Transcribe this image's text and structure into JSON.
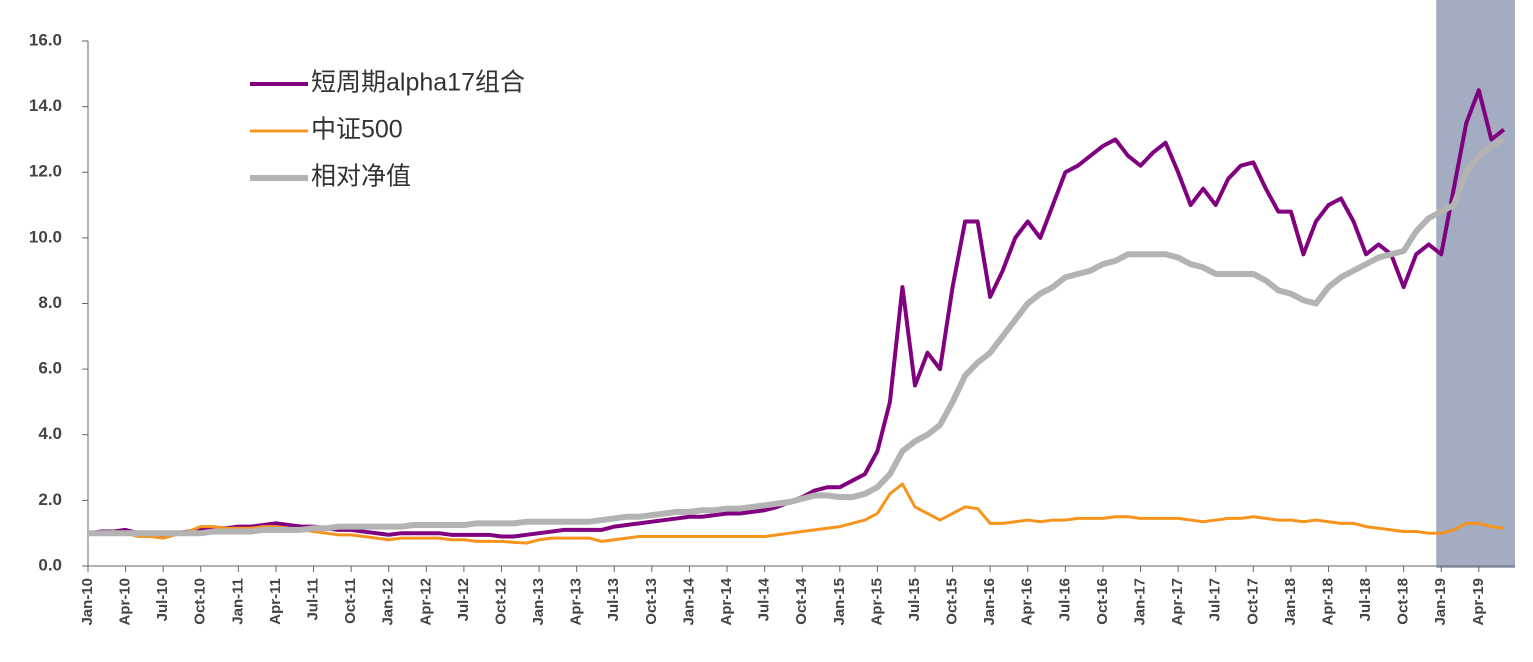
{
  "chart_data": {
    "type": "line",
    "categories": [
      "Jan-10",
      null,
      null,
      "Apr-10",
      null,
      null,
      "Jul-10",
      null,
      null,
      "Oct-10",
      null,
      null,
      "Jan-11",
      null,
      null,
      "Apr-11",
      null,
      null,
      "Jul-11",
      null,
      null,
      "Oct-11",
      null,
      null,
      "Jan-12",
      null,
      null,
      "Apr-12",
      null,
      null,
      "Jul-12",
      null,
      null,
      "Oct-12",
      null,
      null,
      "Jan-13",
      null,
      null,
      "Apr-13",
      null,
      null,
      "Jul-13",
      null,
      null,
      "Oct-13",
      null,
      null,
      "Jan-14",
      null,
      null,
      "Apr-14",
      null,
      null,
      "Jul-14",
      null,
      null,
      "Oct-14",
      null,
      null,
      "Jan-15",
      null,
      null,
      "Apr-15",
      null,
      null,
      "Jul-15",
      null,
      null,
      "Oct-15",
      null,
      null,
      "Jan-16",
      null,
      null,
      "Apr-16",
      null,
      null,
      "Jul-16",
      null,
      null,
      "Oct-16",
      null,
      null,
      "Jan-17",
      null,
      null,
      "Apr-17",
      null,
      null,
      "Jul-17",
      null,
      null,
      "Oct-17",
      null,
      null,
      "Jan-18",
      null,
      null,
      "Apr-18",
      null,
      null,
      "Jul-18",
      null,
      null,
      "Oct-18",
      null,
      null,
      "Jan-19",
      null,
      null,
      "Apr-19",
      null,
      null
    ],
    "series": [
      {
        "name": "短周期alpha17组合",
        "color": "#800080",
        "width": 4,
        "values": [
          1.0,
          1.05,
          1.05,
          1.1,
          1.0,
          0.95,
          0.95,
          1.0,
          1.05,
          1.1,
          1.15,
          1.15,
          1.2,
          1.2,
          1.25,
          1.3,
          1.25,
          1.2,
          1.2,
          1.15,
          1.1,
          1.1,
          1.05,
          1.0,
          0.95,
          1.0,
          1.0,
          1.0,
          1.0,
          0.95,
          0.95,
          0.95,
          0.95,
          0.9,
          0.9,
          0.95,
          1.0,
          1.05,
          1.1,
          1.1,
          1.1,
          1.1,
          1.2,
          1.25,
          1.3,
          1.35,
          1.4,
          1.45,
          1.5,
          1.5,
          1.55,
          1.6,
          1.6,
          1.65,
          1.7,
          1.8,
          1.95,
          2.1,
          2.3,
          2.4,
          2.4,
          2.6,
          2.8,
          3.5,
          5.0,
          8.5,
          5.5,
          6.5,
          6.0,
          8.5,
          10.5,
          10.5,
          8.2,
          9.0,
          10.0,
          10.5,
          10.0,
          11.0,
          12.0,
          12.2,
          12.5,
          12.8,
          13.0,
          12.5,
          12.2,
          12.6,
          12.9,
          12.0,
          11.0,
          11.5,
          11.0,
          11.8,
          12.2,
          12.3,
          11.5,
          10.8,
          10.8,
          9.5,
          10.5,
          11.0,
          11.2,
          10.5,
          9.5,
          9.8,
          9.5,
          8.5,
          9.5,
          9.8,
          9.5,
          11.5,
          13.5,
          14.5,
          13.0,
          13.3
        ]
      },
      {
        "name": "中证500",
        "color": "#f7941d",
        "width": 3,
        "values": [
          1.0,
          1.0,
          1.05,
          1.0,
          0.9,
          0.9,
          0.85,
          0.95,
          1.05,
          1.2,
          1.2,
          1.15,
          1.15,
          1.15,
          1.2,
          1.2,
          1.15,
          1.1,
          1.05,
          1.0,
          0.95,
          0.95,
          0.9,
          0.85,
          0.8,
          0.85,
          0.85,
          0.85,
          0.85,
          0.8,
          0.8,
          0.75,
          0.75,
          0.75,
          0.72,
          0.7,
          0.8,
          0.85,
          0.85,
          0.85,
          0.85,
          0.75,
          0.8,
          0.85,
          0.9,
          0.9,
          0.9,
          0.9,
          0.9,
          0.9,
          0.9,
          0.9,
          0.9,
          0.9,
          0.9,
          0.95,
          1.0,
          1.05,
          1.1,
          1.15,
          1.2,
          1.3,
          1.4,
          1.6,
          2.2,
          2.5,
          1.8,
          1.6,
          1.4,
          1.6,
          1.8,
          1.75,
          1.3,
          1.3,
          1.35,
          1.4,
          1.35,
          1.4,
          1.4,
          1.45,
          1.45,
          1.45,
          1.5,
          1.5,
          1.45,
          1.45,
          1.45,
          1.45,
          1.4,
          1.35,
          1.4,
          1.45,
          1.45,
          1.5,
          1.45,
          1.4,
          1.4,
          1.35,
          1.4,
          1.35,
          1.3,
          1.3,
          1.2,
          1.15,
          1.1,
          1.05,
          1.05,
          1.0,
          1.0,
          1.1,
          1.3,
          1.3,
          1.2,
          1.15
        ]
      },
      {
        "name": "相对净值",
        "color": "#b3b3b3",
        "width": 6,
        "values": [
          1.0,
          1.0,
          1.0,
          1.0,
          1.0,
          1.0,
          1.0,
          1.0,
          1.0,
          1.0,
          1.05,
          1.05,
          1.05,
          1.05,
          1.1,
          1.1,
          1.1,
          1.1,
          1.15,
          1.15,
          1.2,
          1.2,
          1.2,
          1.2,
          1.2,
          1.2,
          1.25,
          1.25,
          1.25,
          1.25,
          1.25,
          1.3,
          1.3,
          1.3,
          1.3,
          1.35,
          1.35,
          1.35,
          1.35,
          1.35,
          1.35,
          1.4,
          1.45,
          1.5,
          1.5,
          1.55,
          1.6,
          1.65,
          1.65,
          1.7,
          1.7,
          1.75,
          1.75,
          1.8,
          1.85,
          1.9,
          1.95,
          2.05,
          2.15,
          2.15,
          2.1,
          2.1,
          2.2,
          2.4,
          2.8,
          3.5,
          3.8,
          4.0,
          4.3,
          5.0,
          5.8,
          6.2,
          6.5,
          7.0,
          7.5,
          8.0,
          8.3,
          8.5,
          8.8,
          8.9,
          9.0,
          9.2,
          9.3,
          9.5,
          9.5,
          9.5,
          9.5,
          9.4,
          9.2,
          9.1,
          8.9,
          8.9,
          8.9,
          8.9,
          8.7,
          8.4,
          8.3,
          8.1,
          8.0,
          8.5,
          8.8,
          9.0,
          9.2,
          9.4,
          9.5,
          9.6,
          10.2,
          10.6,
          10.8,
          11.0,
          12.0,
          12.5,
          12.8,
          13.0
        ]
      }
    ],
    "ylim": [
      0,
      16
    ],
    "yticks": [
      {
        "value": 0,
        "label": "0.0"
      },
      {
        "value": 2,
        "label": "2.0"
      },
      {
        "value": 4,
        "label": "4.0"
      },
      {
        "value": 6,
        "label": "6.0"
      },
      {
        "value": 8,
        "label": "8.0"
      },
      {
        "value": 10,
        "label": "10.0"
      },
      {
        "value": 12,
        "label": "12.0"
      },
      {
        "value": 14,
        "label": "14.0"
      },
      {
        "value": 16,
        "label": "16.0"
      }
    ],
    "highlight": {
      "from": "Jan-19",
      "color": "#a3acc0"
    },
    "legend": "top-left"
  }
}
